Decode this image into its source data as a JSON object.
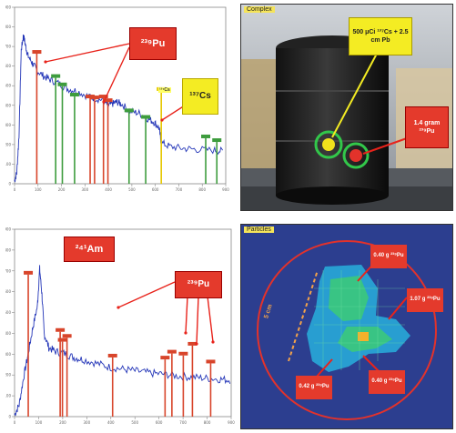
{
  "chart_data": [
    {
      "type": "line",
      "x_ticks": [
        "0",
        "100",
        "200",
        "300",
        "400",
        "500",
        "600",
        "700",
        "800",
        "900"
      ],
      "y_ticks": [
        "0",
        "100",
        "200",
        "300",
        "400",
        "500",
        "600",
        "700",
        "800",
        "900"
      ],
      "xlim": [
        0,
        950
      ],
      "ylim": [
        0,
        950
      ],
      "spectrum": [
        [
          0,
          15
        ],
        [
          10,
          60
        ],
        [
          20,
          260
        ],
        [
          30,
          720
        ],
        [
          40,
          800
        ],
        [
          50,
          740
        ],
        [
          60,
          690
        ],
        [
          80,
          650
        ],
        [
          100,
          610
        ],
        [
          130,
          580
        ],
        [
          160,
          560
        ],
        [
          200,
          540
        ],
        [
          240,
          510
        ],
        [
          280,
          500
        ],
        [
          330,
          470
        ],
        [
          360,
          460
        ],
        [
          400,
          450
        ],
        [
          420,
          420
        ],
        [
          440,
          430
        ],
        [
          460,
          440
        ],
        [
          480,
          430
        ],
        [
          520,
          390
        ],
        [
          560,
          380
        ],
        [
          600,
          350
        ],
        [
          630,
          330
        ],
        [
          650,
          300
        ],
        [
          660,
          220
        ],
        [
          700,
          200
        ],
        [
          760,
          190
        ],
        [
          820,
          185
        ],
        [
          900,
          180
        ],
        [
          940,
          175
        ]
      ],
      "peaks": [
        {
          "x": 100,
          "y": 700,
          "color": "#d8452b"
        },
        {
          "x": 185,
          "y": 570,
          "color": "#3d9c3d"
        },
        {
          "x": 215,
          "y": 525,
          "color": "#3d9c3d"
        },
        {
          "x": 270,
          "y": 470,
          "color": "#3d9c3d"
        },
        {
          "x": 340,
          "y": 460,
          "color": "#d8452b"
        },
        {
          "x": 360,
          "y": 455,
          "color": "#d8452b"
        },
        {
          "x": 400,
          "y": 460,
          "color": "#d8452b"
        },
        {
          "x": 420,
          "y": 440,
          "color": "#d8452b"
        },
        {
          "x": 515,
          "y": 385,
          "color": "#3d9c3d"
        },
        {
          "x": 590,
          "y": 350,
          "color": "#3d9c3d"
        },
        {
          "x": 660,
          "y": 500,
          "color": "#e6c800"
        },
        {
          "x": 860,
          "y": 245,
          "color": "#3d9c3d"
        },
        {
          "x": 910,
          "y": 225,
          "color": "#3d9c3d"
        }
      ],
      "annotations": {
        "pu_label": "²³⁹Pu",
        "cs_label": "¹³⁷Cs",
        "cs_small": "¹³⁷Cs"
      }
    },
    {
      "type": "line",
      "x_ticks": [
        "0",
        "100",
        "200",
        "300",
        "400",
        "500",
        "600",
        "700",
        "800",
        "900"
      ],
      "y_ticks": [
        "0",
        "100",
        "200",
        "300",
        "400",
        "500",
        "600",
        "700",
        "800",
        "900"
      ],
      "xlim": [
        0,
        950
      ],
      "ylim": [
        0,
        950
      ],
      "spectrum": [
        [
          0,
          10
        ],
        [
          20,
          60
        ],
        [
          40,
          200
        ],
        [
          60,
          320
        ],
        [
          80,
          450
        ],
        [
          100,
          560
        ],
        [
          110,
          750
        ],
        [
          120,
          620
        ],
        [
          130,
          420
        ],
        [
          150,
          350
        ],
        [
          180,
          330
        ],
        [
          220,
          320
        ],
        [
          260,
          300
        ],
        [
          300,
          290
        ],
        [
          360,
          270
        ],
        [
          420,
          250
        ],
        [
          480,
          240
        ],
        [
          540,
          230
        ],
        [
          600,
          220
        ],
        [
          660,
          215
        ],
        [
          720,
          205
        ],
        [
          780,
          200
        ],
        [
          840,
          195
        ],
        [
          900,
          190
        ],
        [
          950,
          185
        ]
      ],
      "peaks": [
        {
          "x": 60,
          "y": 720,
          "color": "#d8452b"
        },
        {
          "x": 200,
          "y": 430,
          "color": "#d8452b"
        },
        {
          "x": 210,
          "y": 380,
          "color": "#d8452b"
        },
        {
          "x": 230,
          "y": 400,
          "color": "#d8452b"
        },
        {
          "x": 430,
          "y": 300,
          "color": "#d8452b"
        },
        {
          "x": 660,
          "y": 290,
          "color": "#d8452b"
        },
        {
          "x": 690,
          "y": 320,
          "color": "#d8452b"
        },
        {
          "x": 740,
          "y": 310,
          "color": "#d8452b"
        },
        {
          "x": 780,
          "y": 360,
          "color": "#d8452b"
        },
        {
          "x": 860,
          "y": 270,
          "color": "#d8452b"
        }
      ],
      "annotations": {
        "am_label": "²⁴¹Am",
        "pu_label": "²³⁹Pu"
      }
    }
  ],
  "photo": {
    "title": "Complex",
    "source_label": "500 μCi ¹³⁷Cs + 2.5 cm Pb",
    "mass_label": "1.4 gram ²³⁹Pu"
  },
  "image": {
    "title": "Particles",
    "size_label": "5 cm",
    "particles": [
      {
        "label": "0.40 g ²³⁹Pu"
      },
      {
        "label": "1.07 g ²³⁹Pu"
      },
      {
        "label": "0.42 g ²³⁹Pu"
      },
      {
        "label": "0.40 g ²³⁹Pu"
      }
    ]
  },
  "colors": {
    "spectrum": "#2436b8",
    "red_box": "#e43a2c",
    "yellow_box": "#f4ec23",
    "green_tag": "#2f9b3a",
    "arrow": "#e8231b"
  }
}
